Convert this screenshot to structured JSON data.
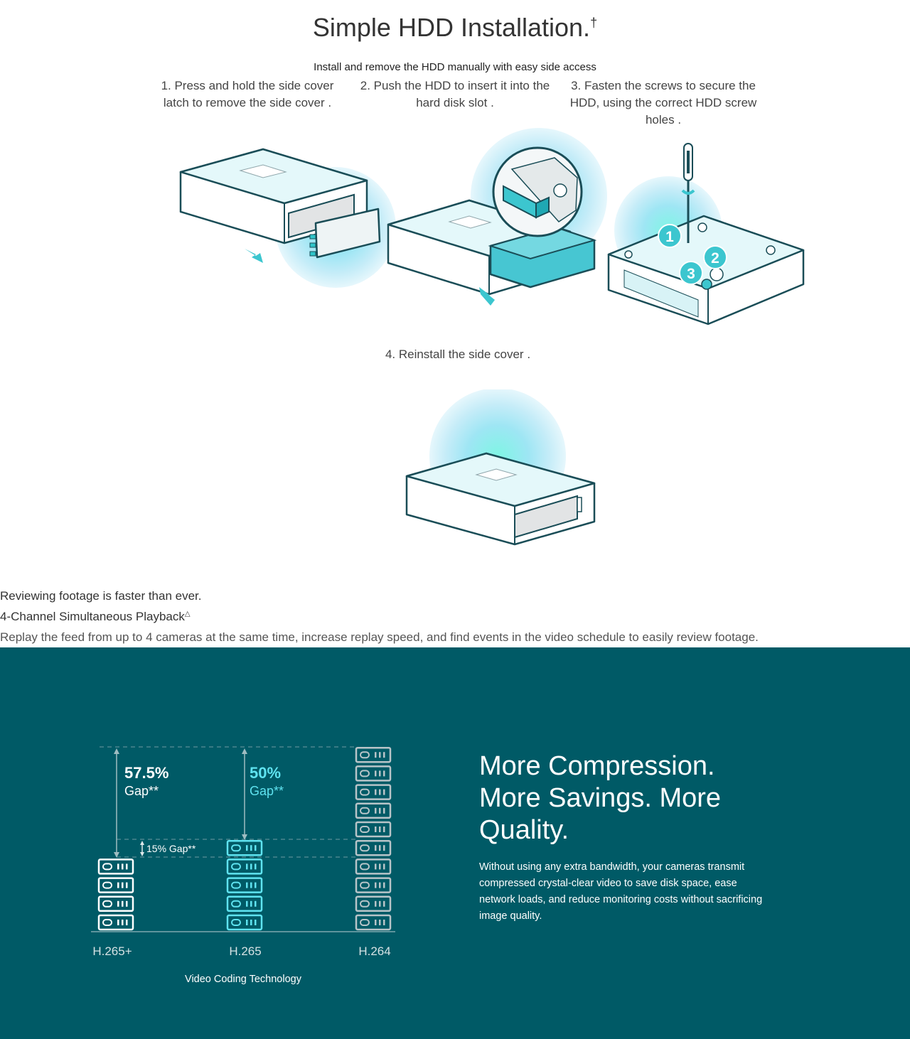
{
  "hdd_section": {
    "title": "Simple HDD Installation.",
    "title_mark": "†",
    "subtitle": "Install and remove the HDD manually with easy side access",
    "steps": [
      {
        "line1": "1. Press and hold the side cover",
        "line2": "latch to remove the side cover .",
        "line3": ""
      },
      {
        "line1": "2. Push the HDD to insert it into the",
        "line2": "hard disk slot .",
        "line3": ""
      },
      {
        "line1": "3. Fasten the screws to secure the",
        "line2": "HDD, using the correct HDD screw",
        "line3": "holes ."
      },
      {
        "line1": "4. Reinstall the side cover .",
        "line2": "",
        "line3": ""
      }
    ],
    "callouts": [
      "1",
      "2",
      "3"
    ]
  },
  "playback_section": {
    "heading": "Reviewing footage is faster than ever.",
    "subheading": "4-Channel Simultaneous Playback",
    "subheading_mark": "△",
    "description": "Replay the feed from up to 4 cameras at the same time, increase replay speed, and find events in the video schedule to easily review footage."
  },
  "compression_section": {
    "title_lines": [
      "More Compression.",
      "More Savings. More",
      "Quality."
    ],
    "description_lines": [
      "Without using any extra bandwidth, your cameras transmit",
      "compressed crystal-clear video to save disk space, ease",
      "network loads, and reduce monitoring costs without sacrificing",
      "image quality."
    ],
    "colors": {
      "background": "#005a66",
      "accent": "#5fe3f0",
      "grey": "#b8c4c8",
      "white": "#ffffff"
    }
  },
  "chart_data": {
    "type": "bar",
    "xlabel": "Video Coding Technology",
    "ylabel": "",
    "categories": [
      "H.265+",
      "H.265",
      "H.264"
    ],
    "values": [
      4,
      5,
      10
    ],
    "units_shown_as": "stacked storage icons",
    "annotations": [
      {
        "from": "H.265+",
        "value": "57.5%",
        "label": "Gap**"
      },
      {
        "from": "H.265",
        "value": "50%",
        "label": "Gap**"
      },
      {
        "between": [
          "H.265+",
          "H.265"
        ],
        "label": "15% Gap**"
      }
    ],
    "colors": [
      "#ffffff",
      "#5fe3f0",
      "#b8c4c8"
    ]
  }
}
